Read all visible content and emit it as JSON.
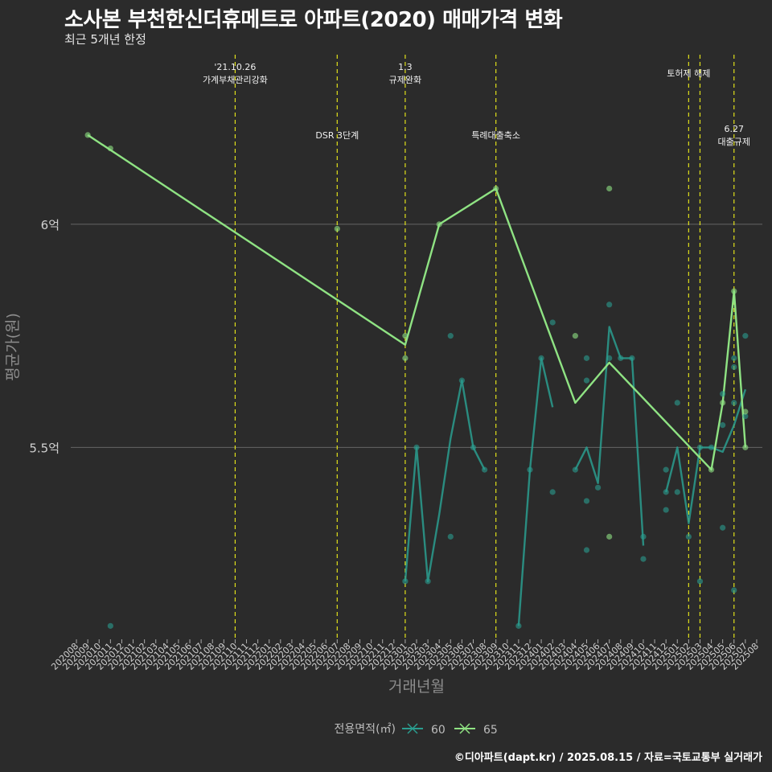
{
  "header": {
    "title": "소사본 부천한신더휴메트로 아파트(2020) 매매가격 변화",
    "subtitle": "최근 5개년 한정",
    "caption": "©디아파트(dapt.kr) / 2025.08.15 / 자료=국토교통부 실거래가"
  },
  "colors": {
    "background": "#2b2b2b",
    "series_60": "#2a9d8f",
    "series_65": "#8fe383",
    "event_line": "#e0e01a",
    "gridline": "#666666"
  },
  "chart_data": {
    "type": "line",
    "xlabel": "거래년월",
    "ylabel": "평균가(원)",
    "x_categories": [
      "202008",
      "202009",
      "202010",
      "202011",
      "202012",
      "202101",
      "202102",
      "202103",
      "202104",
      "202105",
      "202106",
      "202107",
      "202108",
      "202109",
      "202110",
      "202111",
      "202112",
      "202201",
      "202202",
      "202203",
      "202204",
      "202205",
      "202206",
      "202207",
      "202208",
      "202209",
      "202210",
      "202211",
      "202212",
      "202301",
      "202302",
      "202303",
      "202304",
      "202305",
      "202306",
      "202307",
      "202308",
      "202309",
      "202310",
      "202311",
      "202312",
      "202401",
      "202402",
      "202403",
      "202404",
      "202405",
      "202406",
      "202407",
      "202408",
      "202409",
      "202410",
      "202411",
      "202412",
      "202501",
      "202502",
      "202503",
      "202504",
      "202505",
      "202506",
      "202507",
      "202508"
    ],
    "y_ticks": [
      {
        "value": 5.5,
        "label": "5.5억"
      },
      {
        "value": 6.0,
        "label": "6억"
      }
    ],
    "ylim": [
      5.07,
      6.38
    ],
    "unit": "억",
    "legend": {
      "title": "전용면적(㎡)",
      "position": "bottom"
    },
    "series": [
      {
        "name": "60",
        "line": [
          [
            "202301",
            5.2
          ],
          [
            "202302",
            5.5
          ],
          [
            "202303",
            5.2
          ],
          [
            "202304",
            5.35
          ],
          [
            "202305",
            5.52
          ],
          [
            "202306",
            5.65
          ],
          [
            "202307",
            5.5
          ],
          [
            "202308",
            5.45
          ],
          [
            "202309",
            null
          ],
          [
            "202310",
            null
          ],
          [
            "202311",
            5.1
          ],
          [
            "202312",
            5.45
          ],
          [
            "202401",
            5.7
          ],
          [
            "202402",
            5.59
          ],
          [
            "202403",
            null
          ],
          [
            "202404",
            5.45
          ],
          [
            "202405",
            5.5
          ],
          [
            "202406",
            5.42
          ],
          [
            "202407",
            5.77
          ],
          [
            "202408",
            5.7
          ],
          [
            "202409",
            5.7
          ],
          [
            "202410",
            5.28
          ],
          [
            "202411",
            null
          ],
          [
            "202412",
            5.4
          ],
          [
            "202501",
            5.5
          ],
          [
            "202502",
            5.33
          ],
          [
            "202503",
            5.5
          ],
          [
            "202504",
            5.5
          ],
          [
            "202505",
            5.49
          ],
          [
            "202506",
            5.55
          ],
          [
            "202507",
            5.63
          ]
        ],
        "points": [
          [
            "202011",
            5.1
          ],
          [
            "202301",
            5.2
          ],
          [
            "202302",
            5.5
          ],
          [
            "202303",
            5.2
          ],
          [
            "202305",
            5.3
          ],
          [
            "202305",
            5.75
          ],
          [
            "202306",
            5.65
          ],
          [
            "202307",
            5.5
          ],
          [
            "202308",
            5.45
          ],
          [
            "202311",
            5.1
          ],
          [
            "202312",
            5.45
          ],
          [
            "202401",
            5.7
          ],
          [
            "202402",
            5.4
          ],
          [
            "202402",
            5.78
          ],
          [
            "202404",
            5.45
          ],
          [
            "202405",
            5.38
          ],
          [
            "202405",
            5.27
          ],
          [
            "202405",
            5.7
          ],
          [
            "202405",
            5.65
          ],
          [
            "202406",
            5.41
          ],
          [
            "202407",
            5.7
          ],
          [
            "202407",
            5.82
          ],
          [
            "202408",
            5.7
          ],
          [
            "202409",
            5.7
          ],
          [
            "202410",
            5.3
          ],
          [
            "202410",
            5.25
          ],
          [
            "202412",
            5.45
          ],
          [
            "202412",
            5.4
          ],
          [
            "202412",
            5.36
          ],
          [
            "202501",
            5.4
          ],
          [
            "202501",
            5.6
          ],
          [
            "202502",
            5.3
          ],
          [
            "202503",
            5.5
          ],
          [
            "202503",
            5.2
          ],
          [
            "202504",
            5.5
          ],
          [
            "202505",
            5.55
          ],
          [
            "202505",
            5.62
          ],
          [
            "202505",
            5.32
          ],
          [
            "202506",
            5.6
          ],
          [
            "202506",
            5.7
          ],
          [
            "202506",
            5.68
          ],
          [
            "202506",
            5.18
          ],
          [
            "202507",
            5.57
          ],
          [
            "202507",
            5.75
          ]
        ]
      },
      {
        "name": "65",
        "line": [
          [
            "202009",
            6.2
          ],
          [
            "202301",
            5.73
          ],
          [
            "202304",
            6.0
          ],
          [
            "202309",
            6.08
          ],
          [
            "202404",
            5.6
          ],
          [
            "202407",
            5.69
          ],
          [
            "202504",
            5.45
          ],
          [
            "202505",
            5.6
          ],
          [
            "202506",
            5.85
          ],
          [
            "202507",
            5.5
          ]
        ],
        "points": [
          [
            "202009",
            6.2
          ],
          [
            "202011",
            6.17
          ],
          [
            "202207",
            5.99
          ],
          [
            "202301",
            5.75
          ],
          [
            "202301",
            5.7
          ],
          [
            "202304",
            6.0
          ],
          [
            "202309",
            6.08
          ],
          [
            "202404",
            5.75
          ],
          [
            "202407",
            6.08
          ],
          [
            "202407",
            5.3
          ],
          [
            "202504",
            5.45
          ],
          [
            "202505",
            5.6
          ],
          [
            "202506",
            5.85
          ],
          [
            "202507",
            5.5
          ],
          [
            "202507",
            5.58
          ]
        ]
      }
    ],
    "events": [
      {
        "at": "202110",
        "label": "'21.10.26\n가계부채관리강화",
        "row": 1
      },
      {
        "at": "202207",
        "label": "DSR 3단계",
        "row": 2
      },
      {
        "at": "202301",
        "label": "1.3\n규제완화",
        "row": 1
      },
      {
        "at": "202309",
        "label": "특례대출축소",
        "row": 2
      },
      {
        "at": "202502",
        "label": "토허제 해제",
        "row": 1
      },
      {
        "at": "202503",
        "label": "",
        "row": 1
      },
      {
        "at": "202506",
        "label": "6.27\n대출규제",
        "row": 2
      }
    ]
  }
}
